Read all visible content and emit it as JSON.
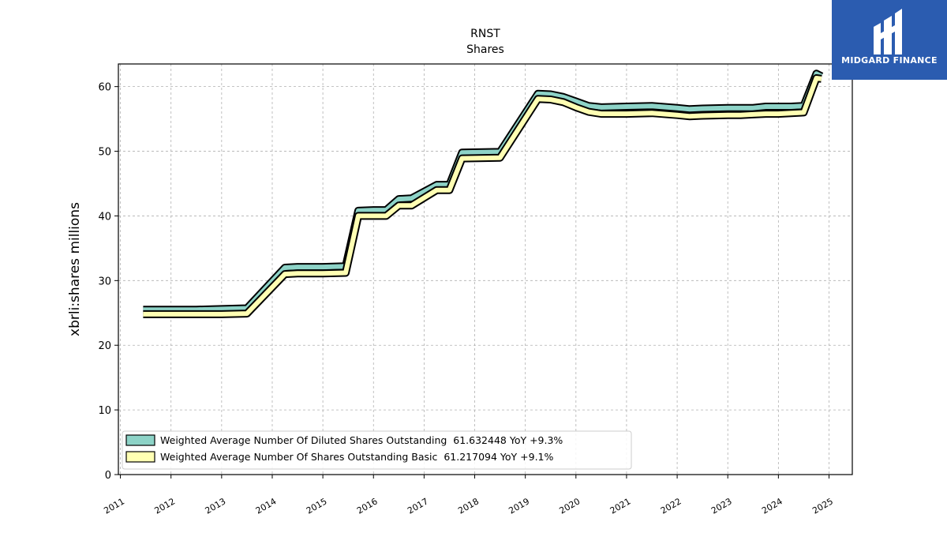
{
  "logo": {
    "text": "MIDGARD FINANCE",
    "bg_color": "#2b5cb0"
  },
  "chart_data": {
    "type": "line",
    "title": "RNST",
    "subtitle": "Shares",
    "xlabel": "",
    "ylabel": "xbrli:shares millions",
    "xlim": [
      2010.96,
      2025.46
    ],
    "ylim": [
      0,
      63.5
    ],
    "yticks": [
      0,
      10,
      20,
      30,
      40,
      50,
      60
    ],
    "xticks": [
      "2011",
      "2012",
      "2013",
      "2014",
      "2015",
      "2016",
      "2017",
      "2018",
      "2019",
      "2020",
      "2021",
      "2022",
      "2023",
      "2024",
      "2025"
    ],
    "grid": true,
    "legend_position": "lower-left",
    "series": [
      {
        "name": "Weighted Average Number Of Diluted Shares Outstanding  61.632448 YoY +9.3%",
        "color": "#8dd3c7",
        "x": [
          2011.45,
          2012.0,
          2012.5,
          2013.0,
          2013.5,
          2014.25,
          2014.5,
          2015.0,
          2015.45,
          2015.7,
          2016.0,
          2016.25,
          2016.5,
          2016.75,
          2017.25,
          2017.5,
          2017.75,
          2018.5,
          2019.25,
          2019.5,
          2019.75,
          2020.0,
          2020.25,
          2020.5,
          2021.0,
          2021.5,
          2022.0,
          2022.25,
          2022.5,
          2023.0,
          2023.25,
          2023.5,
          2023.75,
          2024.0,
          2024.25,
          2024.5,
          2024.75,
          2024.85
        ],
        "y": [
          25.5,
          25.5,
          25.5,
          25.6,
          25.7,
          32.0,
          32.1,
          32.1,
          32.2,
          40.8,
          40.9,
          40.9,
          42.6,
          42.7,
          44.8,
          44.8,
          49.8,
          49.9,
          58.9,
          58.8,
          58.4,
          57.7,
          57.0,
          56.8,
          56.9,
          57.0,
          56.7,
          56.5,
          56.6,
          56.7,
          56.7,
          56.7,
          56.9,
          56.9,
          56.9,
          57.0,
          62.0,
          61.6
        ]
      },
      {
        "name": "Weighted Average Number Of Shares Outstanding Basic  61.217094 YoY +9.1%",
        "color": "#ffffb3",
        "x": [
          2011.45,
          2012.0,
          2012.5,
          2013.0,
          2013.5,
          2014.25,
          2014.5,
          2015.0,
          2015.45,
          2015.7,
          2016.0,
          2016.25,
          2016.5,
          2016.75,
          2017.25,
          2017.5,
          2017.75,
          2018.5,
          2019.25,
          2019.5,
          2019.75,
          2020.0,
          2020.25,
          2020.5,
          2021.0,
          2021.5,
          2022.0,
          2022.25,
          2022.5,
          2023.0,
          2023.25,
          2023.5,
          2023.75,
          2024.0,
          2024.25,
          2024.5,
          2024.75,
          2024.85
        ],
        "y": [
          24.8,
          24.8,
          24.8,
          24.8,
          24.9,
          31.0,
          31.1,
          31.1,
          31.2,
          40.0,
          40.0,
          40.0,
          41.6,
          41.6,
          44.0,
          44.0,
          48.9,
          49.0,
          58.1,
          58.0,
          57.6,
          56.8,
          56.1,
          55.8,
          55.8,
          55.9,
          55.6,
          55.4,
          55.5,
          55.6,
          55.6,
          55.7,
          55.8,
          55.8,
          55.9,
          56.0,
          61.3,
          61.2
        ]
      }
    ]
  }
}
